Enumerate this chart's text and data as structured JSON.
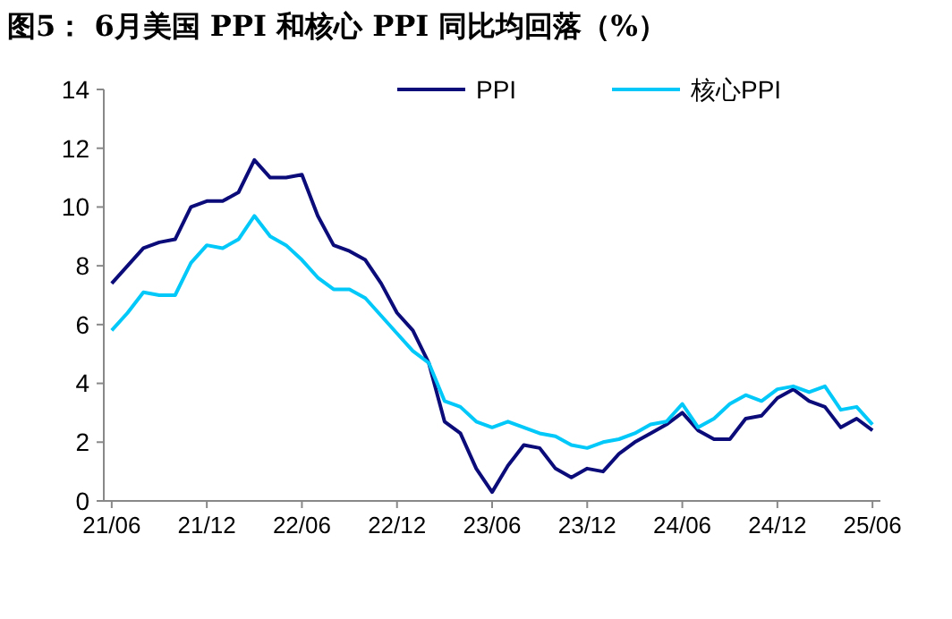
{
  "chart_data": {
    "type": "line",
    "title": "图5： 6月美国 PPI 和核心 PPI 同比均回落（%）",
    "categories": [
      "21/06",
      null,
      null,
      null,
      null,
      null,
      "21/12",
      null,
      null,
      null,
      null,
      null,
      "22/06",
      null,
      null,
      null,
      null,
      null,
      "22/12",
      null,
      null,
      null,
      null,
      null,
      "23/06",
      null,
      null,
      null,
      null,
      null,
      "23/12",
      null,
      null,
      null,
      null,
      null,
      "24/06",
      null,
      null,
      null,
      null,
      null,
      "24/12",
      null,
      null,
      null,
      null,
      null,
      "25/06"
    ],
    "series": [
      {
        "name": "PPI",
        "color": "#0b0b7a",
        "values": [
          7.4,
          8.0,
          8.6,
          8.8,
          8.9,
          10.0,
          10.2,
          10.2,
          10.5,
          11.6,
          11.0,
          11.0,
          11.1,
          9.7,
          8.7,
          8.5,
          8.2,
          7.4,
          6.4,
          5.8,
          4.7,
          2.7,
          2.3,
          1.1,
          0.3,
          1.2,
          1.9,
          1.8,
          1.1,
          0.8,
          1.1,
          1.0,
          1.6,
          2.0,
          2.3,
          2.6,
          3.0,
          2.4,
          2.1,
          2.1,
          2.8,
          2.9,
          3.5,
          3.8,
          3.4,
          3.2,
          2.5,
          2.8,
          2.4
        ]
      },
      {
        "name": "核心PPI",
        "color": "#00c8f8",
        "values": [
          5.8,
          6.4,
          7.1,
          7.0,
          7.0,
          8.1,
          8.7,
          8.6,
          8.9,
          9.7,
          9.0,
          8.7,
          8.2,
          7.6,
          7.2,
          7.2,
          6.9,
          6.3,
          5.7,
          5.1,
          4.7,
          3.4,
          3.2,
          2.7,
          2.5,
          2.7,
          2.5,
          2.3,
          2.2,
          1.9,
          1.8,
          2.0,
          2.1,
          2.3,
          2.6,
          2.7,
          3.3,
          2.5,
          2.8,
          3.3,
          3.6,
          3.4,
          3.8,
          3.9,
          3.7,
          3.9,
          3.1,
          3.2,
          2.6
        ]
      }
    ],
    "ylim": [
      0,
      14
    ],
    "yticks": [
      0,
      2,
      4,
      6,
      8,
      10,
      12,
      14
    ],
    "legend": "top right",
    "grid": false,
    "marker": "none",
    "line_style": "solid"
  }
}
